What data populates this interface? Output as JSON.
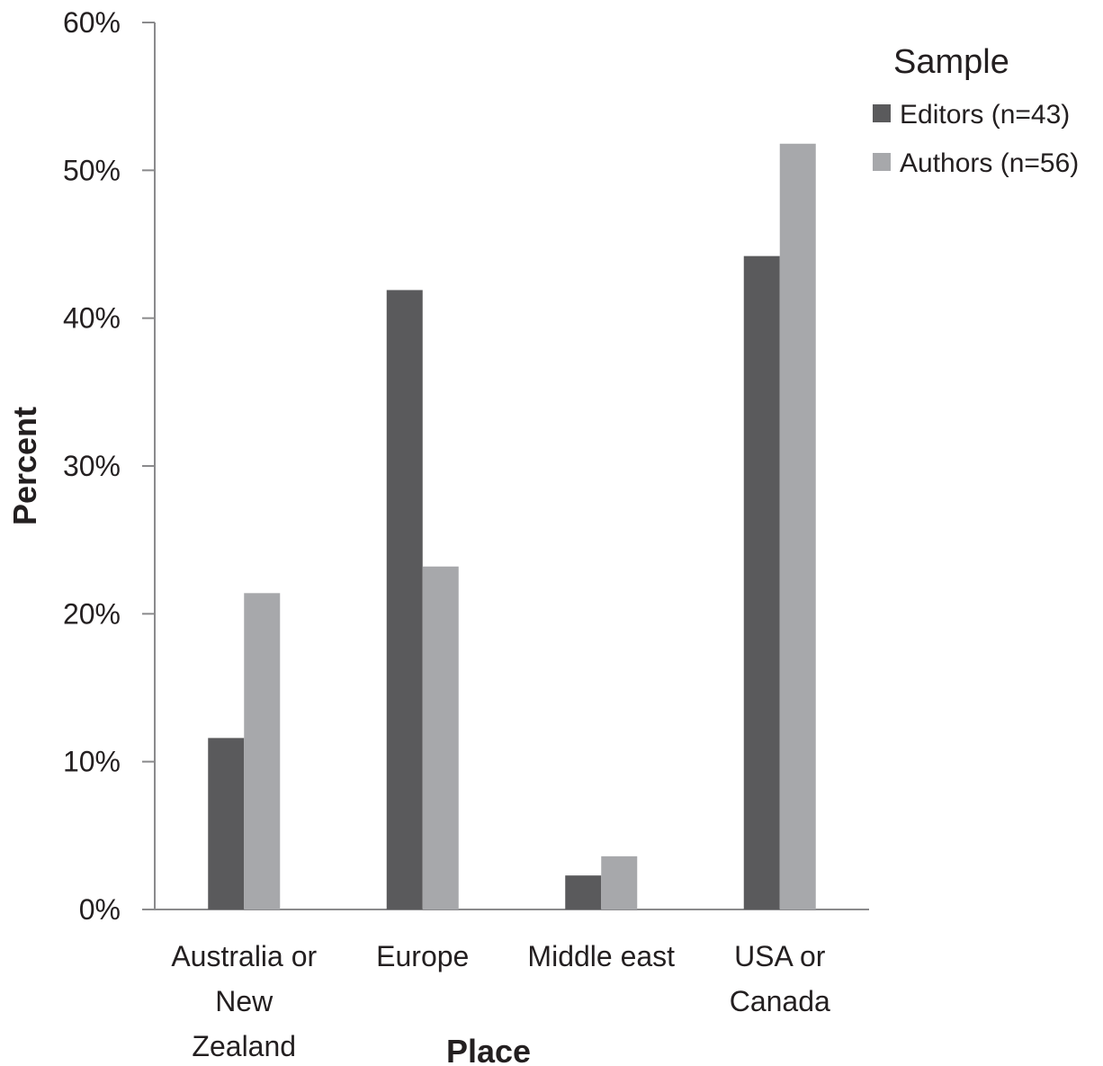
{
  "chart_data": {
    "type": "bar",
    "categories": [
      "Australia or New Zealand",
      "Europe",
      "Middle east",
      "USA or Canada"
    ],
    "category_lines": [
      [
        "Australia or",
        "New",
        "Zealand"
      ],
      [
        "Europe"
      ],
      [
        "Middle east"
      ],
      [
        "USA or",
        "Canada"
      ]
    ],
    "series": [
      {
        "name": "Editors (n=43)",
        "values": [
          11.6,
          41.9,
          2.3,
          44.2
        ],
        "color": "#5a5a5c"
      },
      {
        "name": "Authors (n=56)",
        "values": [
          21.4,
          23.2,
          3.6,
          51.8
        ],
        "color": "#a7a8ab"
      }
    ],
    "xlabel": "Place",
    "ylabel": "Percent",
    "ylim": [
      0,
      60
    ],
    "yticks": [
      0,
      10,
      20,
      30,
      40,
      50,
      60
    ],
    "ytick_labels": [
      "0%",
      "10%",
      "20%",
      "30%",
      "40%",
      "50%",
      "60%"
    ],
    "grid": false,
    "legend": {
      "title": "Sample",
      "placement": "top-right"
    }
  }
}
